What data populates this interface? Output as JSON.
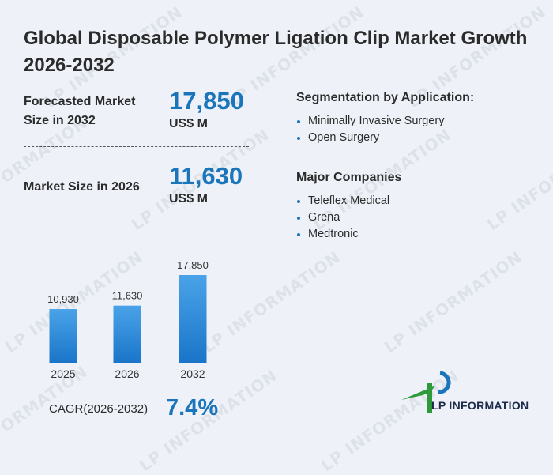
{
  "title": "Global Disposable Polymer Ligation Clip Market Growth 2026-2032",
  "forecast": {
    "label": "Forecasted Market Size in 2032",
    "value": "17,850",
    "unit": "US$ M"
  },
  "current": {
    "label": "Market Size in 2026",
    "value": "11,630",
    "unit": "US$ M"
  },
  "segmentation": {
    "heading": "Segmentation by Application:",
    "items": [
      "Minimally Invasive Surgery",
      "Open Surgery"
    ]
  },
  "companies": {
    "heading": "Major Companies",
    "items": [
      "Teleflex Medical",
      "Grena",
      "Medtronic"
    ]
  },
  "cagr": {
    "label": "CAGR(2026-2032)",
    "value": "7.4%"
  },
  "brand": {
    "name": "LP INFORMATION",
    "watermark": "LP INFORMATION",
    "accent": "#1a75bb",
    "green": "#2e9a3a"
  },
  "chart_data": {
    "type": "bar",
    "categories": [
      "2025",
      "2026",
      "2032"
    ],
    "values": [
      10930,
      11630,
      17850
    ],
    "value_labels": [
      "10,930",
      "11,630",
      "17,850"
    ],
    "ylim": [
      0,
      17850
    ],
    "bar_color_top": "#4aa3e8",
    "bar_color_bottom": "#1a75c9",
    "grid": false
  }
}
